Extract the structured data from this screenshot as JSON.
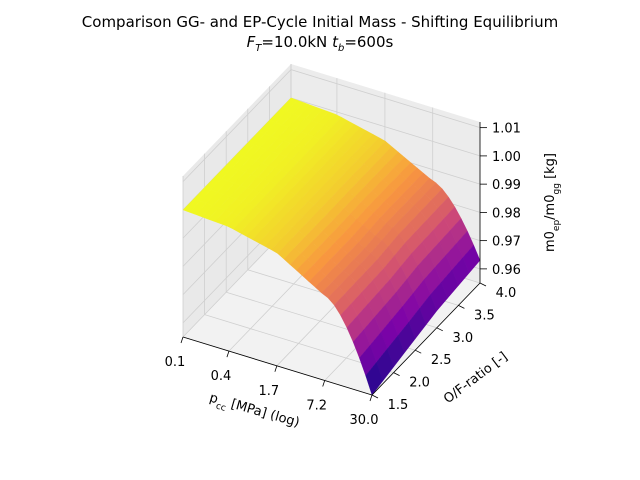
{
  "title": {
    "line1": "Comparison GG- and EP-Cycle Initial Mass - Shifting Equilibrium",
    "line2": "F_T=10.0kN t_b=600s"
  },
  "chart_data": {
    "type": "surface3d",
    "title": "Comparison GG- and EP-Cycle Initial Mass - Shifting Equilibrium",
    "subtitle": "F_T=10.0kN t_b=600s",
    "xlabel": "p_cc [MPa] (log)",
    "ylabel": "O/F-ratio [-]",
    "zlabel": "m0_ep/m0_gg [kg]",
    "x_scale": "log",
    "x_ticks": [
      "0.1",
      "0.4",
      "1.7",
      "7.2",
      "30.0"
    ],
    "y_ticks": [
      "1.5",
      "2.0",
      "2.5",
      "3.0",
      "3.5",
      "4.0"
    ],
    "z_ticks": [
      "0.96",
      "0.97",
      "0.98",
      "0.99",
      "1.00",
      "1.01"
    ],
    "xlim": [
      0.1,
      30.0
    ],
    "ylim": [
      1.5,
      4.0
    ],
    "zlim": [
      0.955,
      1.012
    ],
    "colormap": "plasma",
    "surface_points": [
      {
        "p_cc": 0.1,
        "values": [
          1.0,
          1.0,
          1.0,
          1.0,
          1.0,
          1.0
        ]
      },
      {
        "p_cc": 0.4,
        "values": [
          0.999,
          0.999,
          0.999,
          0.999,
          0.999,
          0.999
        ]
      },
      {
        "p_cc": 1.7,
        "values": [
          0.995,
          0.995,
          0.995,
          0.995,
          0.995,
          0.995
        ]
      },
      {
        "p_cc": 7.2,
        "values": [
          0.985,
          0.985,
          0.985,
          0.986,
          0.986,
          0.986
        ]
      },
      {
        "p_cc": 30.0,
        "values": [
          0.955,
          0.957,
          0.959,
          0.961,
          0.962,
          0.963
        ]
      }
    ],
    "grid": true
  },
  "colors": {
    "pane": "#f2f2f2",
    "grid": "#cfcfcf",
    "axis": "#000000"
  }
}
